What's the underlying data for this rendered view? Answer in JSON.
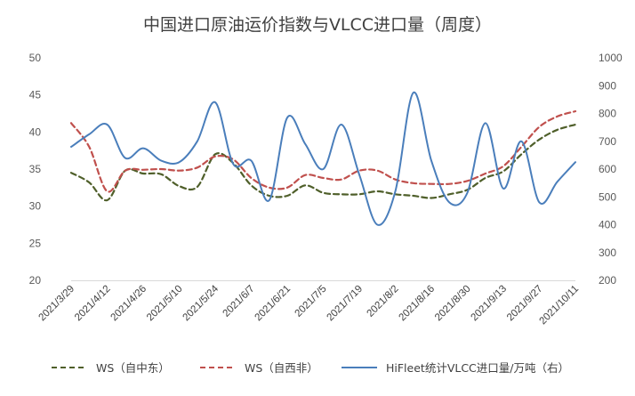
{
  "chart_data": {
    "type": "line",
    "title": "中国进口原油运价指数与VLCC进口量（周度）",
    "x_tick_labels": [
      "2021/3/29",
      "2021/4/12",
      "2021/4/26",
      "2021/5/10",
      "2021/5/24",
      "2021/6/7",
      "2021/6/21",
      "2021/7/5",
      "2021/7/19",
      "2021/8/2",
      "2021/8/16",
      "2021/8/30",
      "2021/9/13",
      "2021/9/27",
      "2021/10/11"
    ],
    "x_dates": [
      "2021/3/29",
      "2021/4/5",
      "2021/4/12",
      "2021/4/19",
      "2021/4/26",
      "2021/5/3",
      "2021/5/10",
      "2021/5/17",
      "2021/5/24",
      "2021/5/31",
      "2021/6/7",
      "2021/6/14",
      "2021/6/21",
      "2021/6/28",
      "2021/7/5",
      "2021/7/12",
      "2021/7/19",
      "2021/7/26",
      "2021/8/2",
      "2021/8/9",
      "2021/8/16",
      "2021/8/23",
      "2021/8/30",
      "2021/9/6",
      "2021/9/13",
      "2021/9/20",
      "2021/9/27",
      "2021/10/4",
      "2021/10/11"
    ],
    "y_left": {
      "range": [
        20,
        50
      ],
      "ticks": [
        "20",
        "25",
        "30",
        "35",
        "40",
        "45",
        "50"
      ]
    },
    "y_right": {
      "range": [
        200,
        1000
      ],
      "ticks": [
        "200",
        "300",
        "400",
        "500",
        "600",
        "700",
        "800",
        "900",
        "1000"
      ]
    },
    "series": [
      {
        "name": "WS（自中东）",
        "axis": "left",
        "style": "dashed",
        "color": "#4f5f2a",
        "values": [
          34.5,
          33.2,
          30.8,
          34.8,
          34.4,
          34.3,
          32.7,
          32.6,
          37.0,
          35.8,
          32.8,
          31.4,
          31.4,
          32.8,
          31.8,
          31.6,
          31.6,
          32.0,
          31.6,
          31.4,
          31.1,
          31.6,
          32.2,
          33.8,
          34.7,
          37.0,
          39.0,
          40.3,
          41.0
        ]
      },
      {
        "name": "WS（自西非）",
        "axis": "left",
        "style": "dashed",
        "color": "#c0504d",
        "values": [
          41.2,
          38.0,
          32.0,
          34.8,
          34.9,
          35.0,
          34.8,
          35.2,
          36.7,
          36.3,
          33.8,
          32.5,
          32.5,
          34.2,
          33.8,
          33.6,
          34.8,
          34.8,
          33.6,
          33.1,
          33.0,
          33.0,
          33.4,
          34.4,
          35.4,
          38.0,
          40.7,
          42.1,
          42.8
        ]
      },
      {
        "name": "HiFleet统计VLCC进口量/万吨（右）",
        "axis": "right",
        "style": "solid",
        "color": "#4a7ebb",
        "values": [
          680,
          725,
          760,
          640,
          675,
          630,
          625,
          700,
          840,
          618,
          630,
          488,
          785,
          690,
          600,
          760,
          580,
          400,
          520,
          875,
          630,
          480,
          515,
          765,
          530,
          700,
          480,
          555,
          625
        ]
      }
    ],
    "legend_position": "bottom",
    "grid": false
  }
}
